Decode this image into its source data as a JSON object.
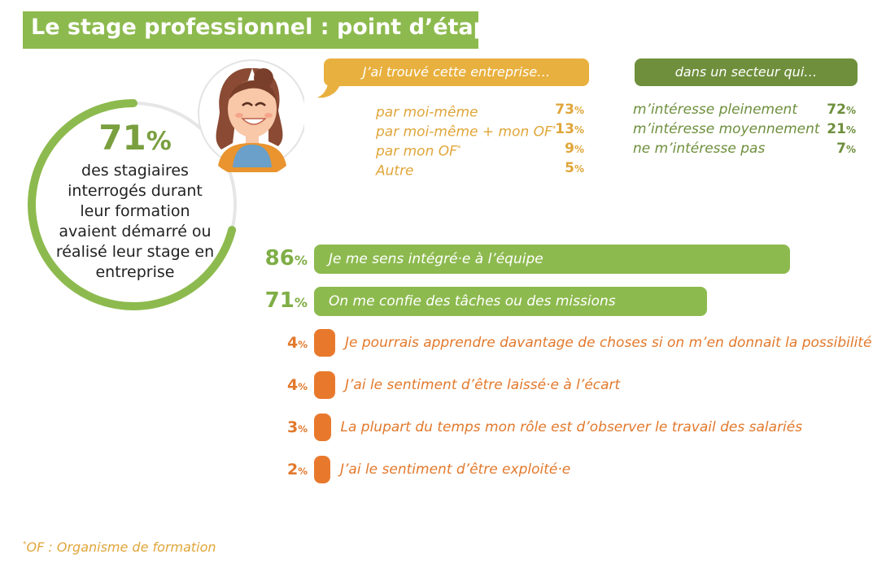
{
  "title": "Le stage professionnel : point d’étape",
  "colors": {
    "green": "#8dba4e",
    "dark_green": "#6f8f3c",
    "yellow": "#e8b03e",
    "orange": "#e8792c"
  },
  "ring": {
    "pct_number": "71",
    "pct_sign": "%",
    "description": [
      "des stagiaires",
      "interrogés durant",
      "leur formation",
      "avaient démarré ou",
      "réalisé leur stage en",
      "entreprise"
    ]
  },
  "found_company": {
    "header": "J’ai trouvé cette entreprise…",
    "items": [
      {
        "label": "par moi-même",
        "sup": "",
        "value": "73",
        "unit": "%"
      },
      {
        "label": "par moi-même + mon OF",
        "sup": "*",
        "value": "13",
        "unit": "%"
      },
      {
        "label": "par mon OF",
        "sup": "*",
        "value": "9",
        "unit": "%"
      },
      {
        "label": "Autre",
        "sup": "",
        "value": "5",
        "unit": "%"
      }
    ]
  },
  "sector": {
    "header": "dans un secteur qui…",
    "items": [
      {
        "label": "m’intéresse pleinement",
        "value": "72",
        "unit": "%"
      },
      {
        "label": "m’intéresse moyennement",
        "value": "21",
        "unit": "%"
      },
      {
        "label": "ne m’intéresse pas",
        "value": "7",
        "unit": "%"
      }
    ]
  },
  "chart_data": {
    "type": "bar",
    "orientation": "horizontal",
    "categories": [
      "Je me sens intégré·e à l’équipe",
      "On me confie des tâches ou des missions",
      "Je pourrais apprendre davantage de choses si on m’en donnait la possibilité",
      "J’ai le sentiment d’être laissé·e à l’écart",
      "La plupart du temps mon rôle est d’observer le travail des salariés",
      "J’ai le sentiment d’être exploité·e"
    ],
    "values": [
      86,
      71,
      4,
      4,
      3,
      2
    ],
    "unit": "%",
    "colors": [
      "#8dba4e",
      "#8dba4e",
      "#e8792c",
      "#e8792c",
      "#e8792c",
      "#e8792c"
    ]
  },
  "footnote": {
    "sup": "*",
    "text": "OF : Organisme de formation"
  }
}
